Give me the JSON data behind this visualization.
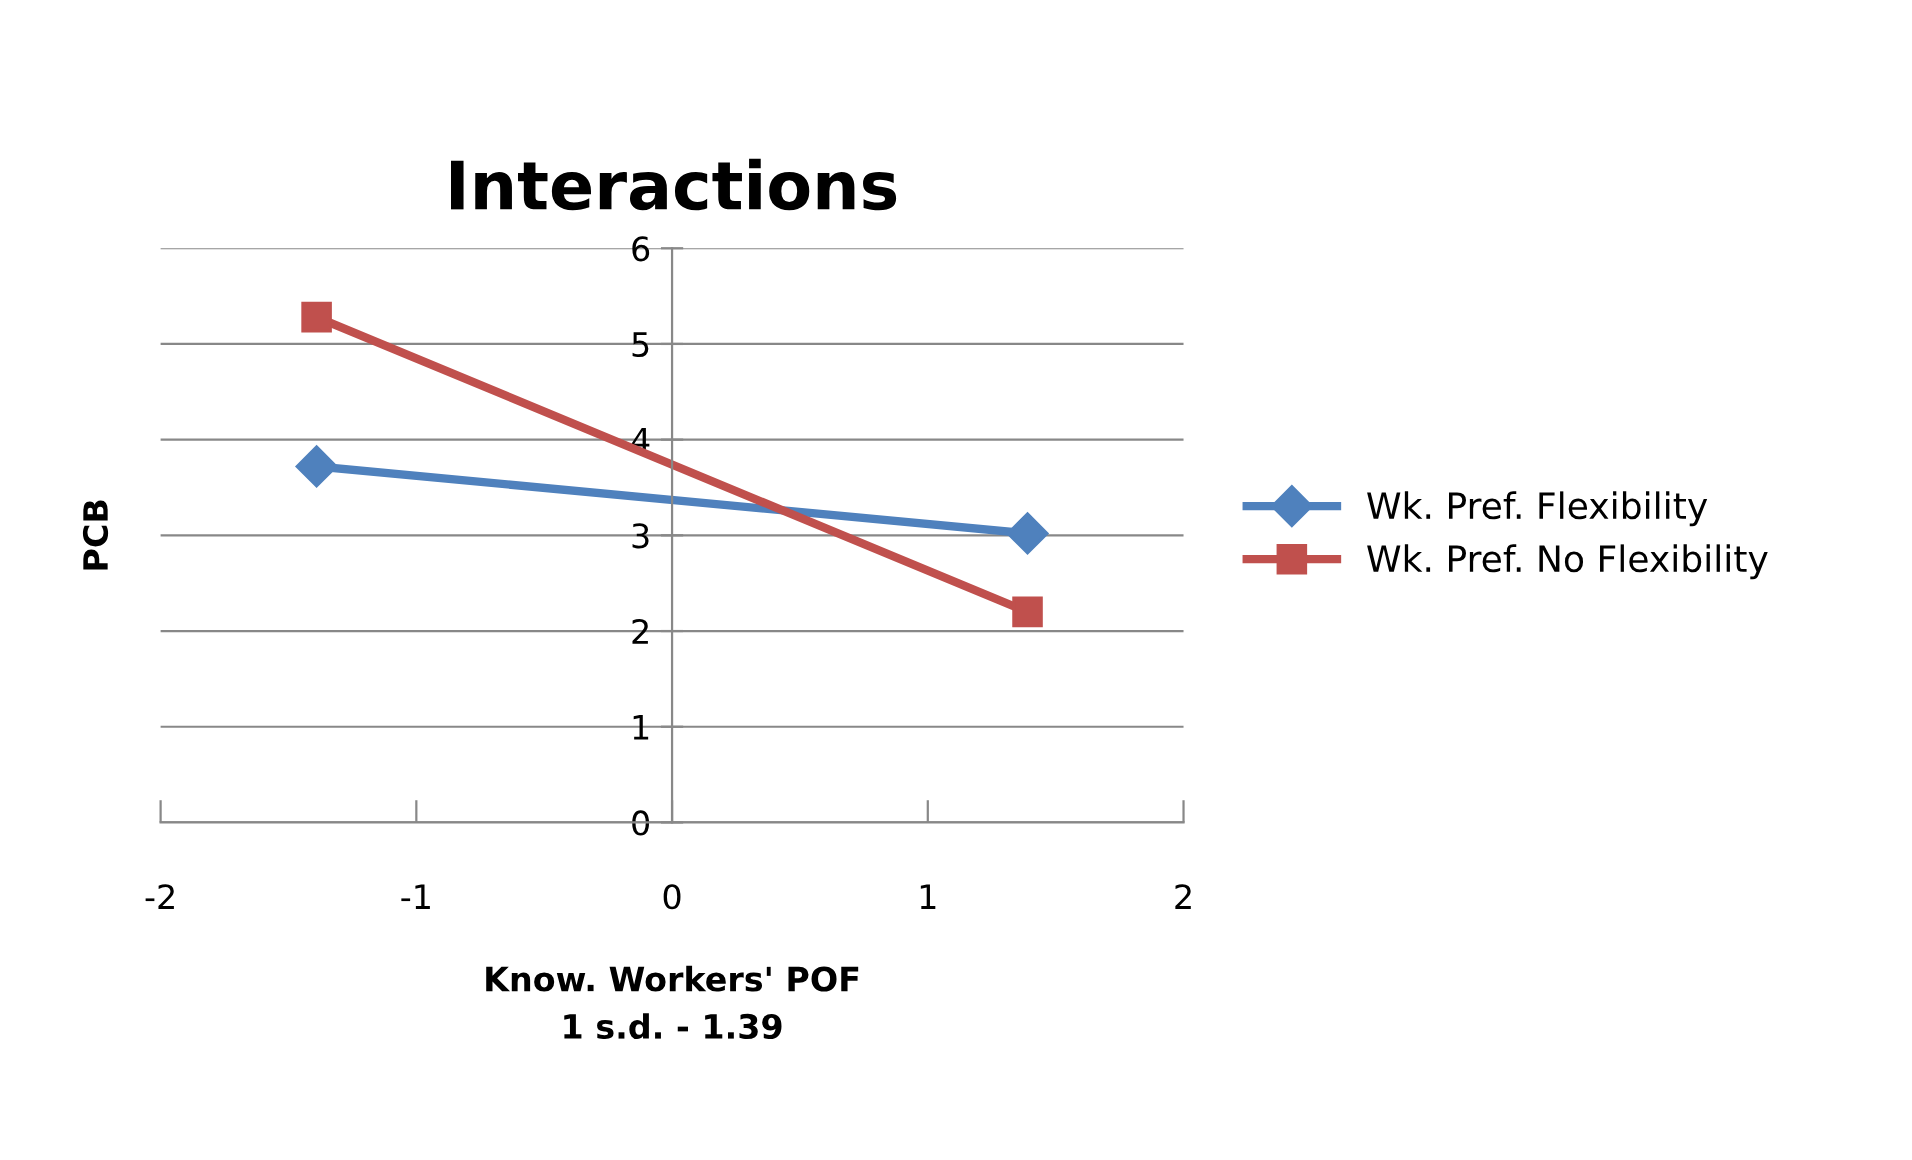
{
  "chart_data": {
    "type": "line",
    "title": "Interactions",
    "xlabel": "Know. Workers' POF\n1 s.d. - 1.39",
    "ylabel": "PCB",
    "x": [
      -1.39,
      1.39
    ],
    "series": [
      {
        "name": "Wk. Pref. Flexibility",
        "color": "#4f81bd",
        "values": [
          3.72,
          3.02
        ],
        "marker": "diamond"
      },
      {
        "name": "Wk. Pref. No Flexibility",
        "color": "#c0504d",
        "values": [
          5.28,
          2.2
        ],
        "marker": "square"
      }
    ],
    "xlim": [
      -2,
      2
    ],
    "xticks": [
      -2,
      -1,
      0,
      1,
      2
    ],
    "ylim": [
      0,
      6
    ],
    "yticks": [
      0,
      1,
      2,
      3,
      4,
      5,
      6
    ],
    "grid": "y",
    "legend": "right",
    "line_style": "solid"
  }
}
